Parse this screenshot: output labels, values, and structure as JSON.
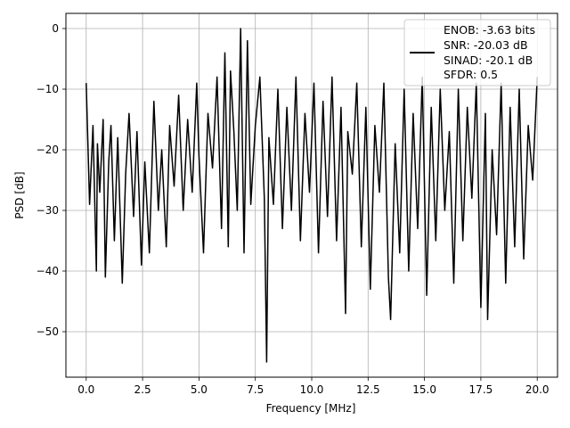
{
  "chart_data": {
    "type": "line",
    "title": "",
    "xlabel": "Frequency [MHz]",
    "ylabel": "PSD [dB]",
    "xlim": [
      -0.9,
      20.9
    ],
    "ylim": [
      -57.5,
      2.5
    ],
    "xticks": [
      0.0,
      2.5,
      5.0,
      7.5,
      10.0,
      12.5,
      15.0,
      17.5,
      20.0
    ],
    "xtick_labels": [
      "0.0",
      "2.5",
      "5.0",
      "7.5",
      "10.0",
      "12.5",
      "15.0",
      "17.5",
      "20.0"
    ],
    "yticks": [
      0,
      -10,
      -20,
      -30,
      -40,
      -50
    ],
    "ytick_labels": [
      "0",
      "−10",
      "−20",
      "−30",
      "−40",
      "−50"
    ],
    "grid": true,
    "legend": {
      "placement": "top-right",
      "lines": [
        "ENOB: -3.63 bits",
        "SNR: -20.03 dB",
        "SINAD: -20.1 dB",
        "SFDR: 0.5"
      ]
    },
    "series": [
      {
        "color": "#000000",
        "x": [
          0.0,
          0.15,
          0.3,
          0.45,
          0.5,
          0.6,
          0.75,
          0.85,
          1.0,
          1.1,
          1.25,
          1.4,
          1.6,
          1.75,
          1.9,
          2.1,
          2.25,
          2.45,
          2.6,
          2.8,
          3.0,
          3.2,
          3.35,
          3.55,
          3.7,
          3.9,
          4.1,
          4.3,
          4.5,
          4.7,
          4.9,
          5.0,
          5.2,
          5.4,
          5.6,
          5.8,
          6.0,
          6.15,
          6.3,
          6.4,
          6.55,
          6.7,
          6.85,
          7.0,
          7.15,
          7.3,
          7.5,
          7.7,
          7.9,
          8.0,
          8.1,
          8.3,
          8.5,
          8.7,
          8.9,
          9.1,
          9.3,
          9.5,
          9.7,
          9.9,
          10.1,
          10.3,
          10.5,
          10.7,
          10.9,
          11.1,
          11.3,
          11.5,
          11.6,
          11.8,
          12.0,
          12.2,
          12.4,
          12.6,
          12.8,
          13.0,
          13.2,
          13.4,
          13.5,
          13.7,
          13.9,
          14.1,
          14.3,
          14.5,
          14.7,
          14.9,
          15.1,
          15.3,
          15.5,
          15.7,
          15.9,
          16.1,
          16.3,
          16.5,
          16.7,
          16.9,
          17.1,
          17.3,
          17.5,
          17.7,
          17.8,
          18.0,
          18.2,
          18.4,
          18.6,
          18.8,
          19.0,
          19.2,
          19.4,
          19.6,
          19.8,
          20.0
        ],
        "y": [
          -9,
          -29,
          -16,
          -40,
          -19,
          -27,
          -15,
          -41,
          -22,
          -16,
          -35,
          -18,
          -42,
          -24,
          -14,
          -31,
          -17,
          -39,
          -22,
          -37,
          -12,
          -30,
          -20,
          -36,
          -16,
          -26,
          -11,
          -30,
          -15,
          -27,
          -9,
          -21,
          -37,
          -14,
          -23,
          -8,
          -33,
          -4,
          -36,
          -7,
          -17,
          -30,
          0,
          -37,
          -2,
          -29,
          -16,
          -8,
          -28,
          -55,
          -18,
          -29,
          -10,
          -33,
          -13,
          -30,
          -8,
          -35,
          -14,
          -27,
          -9,
          -37,
          -12,
          -31,
          -8,
          -35,
          -13,
          -47,
          -17,
          -24,
          -9,
          -36,
          -13,
          -43,
          -16,
          -27,
          -9,
          -41,
          -48,
          -19,
          -37,
          -10,
          -40,
          -14,
          -33,
          -8,
          -44,
          -13,
          -35,
          -10,
          -30,
          -17,
          -42,
          -10,
          -35,
          -13,
          -28,
          -9,
          -46,
          -14,
          -48,
          -20,
          -34,
          -9,
          -42,
          -13,
          -36,
          -10,
          -38,
          -16,
          -25,
          -8
        ]
      }
    ]
  }
}
